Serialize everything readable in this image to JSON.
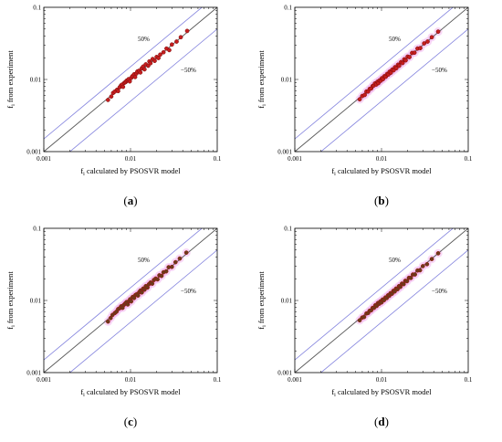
{
  "figure": {
    "panels": [
      {
        "caption_open": "(",
        "caption_letter": "a",
        "caption_close": ")",
        "point_color": "#c41e1e",
        "point_edge": "#7a0a0a",
        "halo": false
      },
      {
        "caption_open": "(",
        "caption_letter": "b",
        "caption_close": ")",
        "point_color": "#c41e1e",
        "point_edge": "#7a0a0a",
        "halo": true
      },
      {
        "caption_open": "(",
        "caption_letter": "c",
        "caption_close": ")",
        "point_color": "#6b3b1a",
        "point_edge": "#a01010",
        "halo": true
      },
      {
        "caption_open": "(",
        "caption_letter": "d",
        "caption_close": ")",
        "point_color": "#6b3b1a",
        "point_edge": "#a01010",
        "halo": true
      }
    ],
    "colors": {
      "identity_line": "#555555",
      "band_line": "#8080dd",
      "halo": "#f2b6ee",
      "frame": "#000000"
    }
  },
  "chart_data": [
    {
      "type": "scatter",
      "xlabel_main": "f",
      "xlabel_sub": "i",
      "xlabel_rest": " calculated by PSOSVR model",
      "ylabel_main": "f",
      "ylabel_sub": "i",
      "ylabel_rest": " from experiment",
      "xscale": "log",
      "yscale": "log",
      "xlim": [
        0.001,
        0.1
      ],
      "ylim": [
        0.001,
        0.1
      ],
      "xticks": [
        "0.001",
        "0.01",
        "0.1"
      ],
      "yticks": [
        "0.001",
        "0.01",
        "0.1"
      ],
      "reference_lines": [
        {
          "label": "",
          "slope_factor": 1.0
        },
        {
          "label": "50%",
          "slope_factor": 1.5
        },
        {
          "label": "−50%",
          "slope_factor": 0.5
        }
      ],
      "x": [
        0.0055,
        0.006,
        0.0063,
        0.0066,
        0.007,
        0.0072,
        0.0075,
        0.0078,
        0.008,
        0.0082,
        0.0085,
        0.0088,
        0.009,
        0.0093,
        0.0095,
        0.0098,
        0.0102,
        0.0105,
        0.011,
        0.0113,
        0.0117,
        0.012,
        0.0125,
        0.013,
        0.0135,
        0.014,
        0.0145,
        0.015,
        0.016,
        0.0165,
        0.017,
        0.018,
        0.019,
        0.02,
        0.021,
        0.022,
        0.024,
        0.026,
        0.028,
        0.03,
        0.034,
        0.038,
        0.045
      ],
      "y": [
        0.0052,
        0.0058,
        0.0065,
        0.0068,
        0.0072,
        0.0069,
        0.0078,
        0.0083,
        0.0085,
        0.0079,
        0.009,
        0.0092,
        0.0096,
        0.0097,
        0.0101,
        0.0094,
        0.0105,
        0.0111,
        0.0118,
        0.0108,
        0.0121,
        0.0129,
        0.0132,
        0.0125,
        0.0143,
        0.0151,
        0.0138,
        0.0162,
        0.0155,
        0.0178,
        0.0168,
        0.0192,
        0.0181,
        0.0205,
        0.0198,
        0.0221,
        0.0238,
        0.0268,
        0.0255,
        0.0305,
        0.0335,
        0.0385,
        0.047
      ]
    },
    {
      "type": "scatter",
      "xlabel_main": "f",
      "xlabel_sub": "i",
      "xlabel_rest": " calculated by PSOSVR model",
      "ylabel_main": "f",
      "ylabel_sub": "i",
      "ylabel_rest": " from experiment",
      "xscale": "log",
      "yscale": "log",
      "xlim": [
        0.001,
        0.1
      ],
      "ylim": [
        0.001,
        0.1
      ],
      "xticks": [
        "0.001",
        "0.01",
        "0.1"
      ],
      "yticks": [
        "0.001",
        "0.01",
        "0.1"
      ],
      "reference_lines": [
        {
          "label": "",
          "slope_factor": 1.0
        },
        {
          "label": "50%",
          "slope_factor": 1.5
        },
        {
          "label": "−50%",
          "slope_factor": 0.5
        }
      ],
      "x": [
        0.0056,
        0.006,
        0.0064,
        0.0067,
        0.007,
        0.0073,
        0.0076,
        0.0079,
        0.0081,
        0.0084,
        0.0087,
        0.009,
        0.0092,
        0.0095,
        0.0098,
        0.0101,
        0.0104,
        0.0108,
        0.0112,
        0.0116,
        0.012,
        0.0124,
        0.0128,
        0.0133,
        0.0138,
        0.0143,
        0.0148,
        0.0155,
        0.016,
        0.0168,
        0.0175,
        0.0183,
        0.019,
        0.02,
        0.021,
        0.0225,
        0.024,
        0.026,
        0.028,
        0.031,
        0.034,
        0.038,
        0.045
      ],
      "y": [
        0.0053,
        0.0059,
        0.0061,
        0.0068,
        0.0068,
        0.0074,
        0.0075,
        0.0081,
        0.0082,
        0.0088,
        0.0085,
        0.0093,
        0.0089,
        0.0097,
        0.0096,
        0.0104,
        0.0101,
        0.0111,
        0.0109,
        0.0119,
        0.0117,
        0.0128,
        0.0124,
        0.0137,
        0.0134,
        0.0148,
        0.0143,
        0.016,
        0.0155,
        0.0174,
        0.0169,
        0.019,
        0.0184,
        0.0207,
        0.0204,
        0.0233,
        0.0235,
        0.0268,
        0.0272,
        0.0316,
        0.0335,
        0.0385,
        0.046
      ]
    },
    {
      "type": "scatter",
      "xlabel_main": "f",
      "xlabel_sub": "i",
      "xlabel_rest": " calculated by PSOSVR model",
      "ylabel_main": "f",
      "ylabel_sub": "i",
      "ylabel_rest": " from experiment",
      "xscale": "log",
      "yscale": "log",
      "xlim": [
        0.001,
        0.1
      ],
      "ylim": [
        0.001,
        0.1
      ],
      "xticks": [
        "0.001",
        "0.01",
        "0.1"
      ],
      "yticks": [
        "0.001",
        "0.01",
        "0.1"
      ],
      "reference_lines": [
        {
          "label": "",
          "slope_factor": 1.0
        },
        {
          "label": "50%",
          "slope_factor": 1.5
        },
        {
          "label": "−50%",
          "slope_factor": 0.5
        }
      ],
      "x": [
        0.0055,
        0.0059,
        0.0062,
        0.0066,
        0.0069,
        0.0072,
        0.0075,
        0.0078,
        0.0081,
        0.0084,
        0.0087,
        0.009,
        0.0093,
        0.0096,
        0.0099,
        0.0102,
        0.0106,
        0.011,
        0.0114,
        0.0118,
        0.0122,
        0.0126,
        0.013,
        0.0135,
        0.014,
        0.0145,
        0.015,
        0.0157,
        0.0163,
        0.017,
        0.0178,
        0.0186,
        0.0195,
        0.0205,
        0.0215,
        0.0228,
        0.024,
        0.0258,
        0.0275,
        0.03,
        0.033,
        0.037,
        0.044
      ],
      "y": [
        0.0051,
        0.0057,
        0.0063,
        0.0067,
        0.007,
        0.0076,
        0.0078,
        0.0083,
        0.0079,
        0.0087,
        0.0091,
        0.0095,
        0.0088,
        0.0098,
        0.0104,
        0.0097,
        0.0112,
        0.0108,
        0.0119,
        0.0122,
        0.0117,
        0.013,
        0.0137,
        0.0129,
        0.0146,
        0.0141,
        0.0158,
        0.0151,
        0.0168,
        0.0177,
        0.0171,
        0.0192,
        0.0201,
        0.0196,
        0.0223,
        0.0219,
        0.0246,
        0.0253,
        0.0289,
        0.0292,
        0.0339,
        0.0381,
        0.046
      ]
    },
    {
      "type": "scatter",
      "xlabel_main": "f",
      "xlabel_sub": "i",
      "xlabel_rest": " calculated by PSOSVR model",
      "ylabel_main": "f",
      "ylabel_sub": "i",
      "ylabel_rest": " from experiment",
      "xscale": "log",
      "yscale": "log",
      "xlim": [
        0.001,
        0.1
      ],
      "ylim": [
        0.001,
        0.1
      ],
      "xticks": [
        "0.001",
        "0.01",
        "0.1"
      ],
      "yticks": [
        "0.001",
        "0.01",
        "0.1"
      ],
      "reference_lines": [
        {
          "label": "",
          "slope_factor": 1.0
        },
        {
          "label": "50%",
          "slope_factor": 1.5
        },
        {
          "label": "−50%",
          "slope_factor": 0.5
        }
      ],
      "x": [
        0.0056,
        0.006,
        0.0063,
        0.0067,
        0.007,
        0.0073,
        0.0076,
        0.0079,
        0.0082,
        0.0085,
        0.0088,
        0.0091,
        0.0094,
        0.0097,
        0.01,
        0.0103,
        0.0107,
        0.0111,
        0.0115,
        0.0119,
        0.0123,
        0.0127,
        0.0132,
        0.0137,
        0.0142,
        0.0147,
        0.0153,
        0.0159,
        0.0165,
        0.0172,
        0.018,
        0.0188,
        0.0197,
        0.0207,
        0.0218,
        0.023,
        0.0243,
        0.026,
        0.0278,
        0.03,
        0.0335,
        0.038,
        0.045
      ],
      "y": [
        0.0053,
        0.0058,
        0.0059,
        0.0066,
        0.0067,
        0.0072,
        0.0073,
        0.0079,
        0.0079,
        0.0086,
        0.0084,
        0.0092,
        0.009,
        0.0097,
        0.0094,
        0.0103,
        0.0101,
        0.011,
        0.0108,
        0.0118,
        0.0116,
        0.0126,
        0.0124,
        0.0136,
        0.0133,
        0.0146,
        0.0143,
        0.0158,
        0.0154,
        0.0171,
        0.0168,
        0.0187,
        0.0185,
        0.0206,
        0.0205,
        0.0229,
        0.0229,
        0.026,
        0.0262,
        0.0299,
        0.0318,
        0.0375,
        0.045
      ]
    }
  ]
}
